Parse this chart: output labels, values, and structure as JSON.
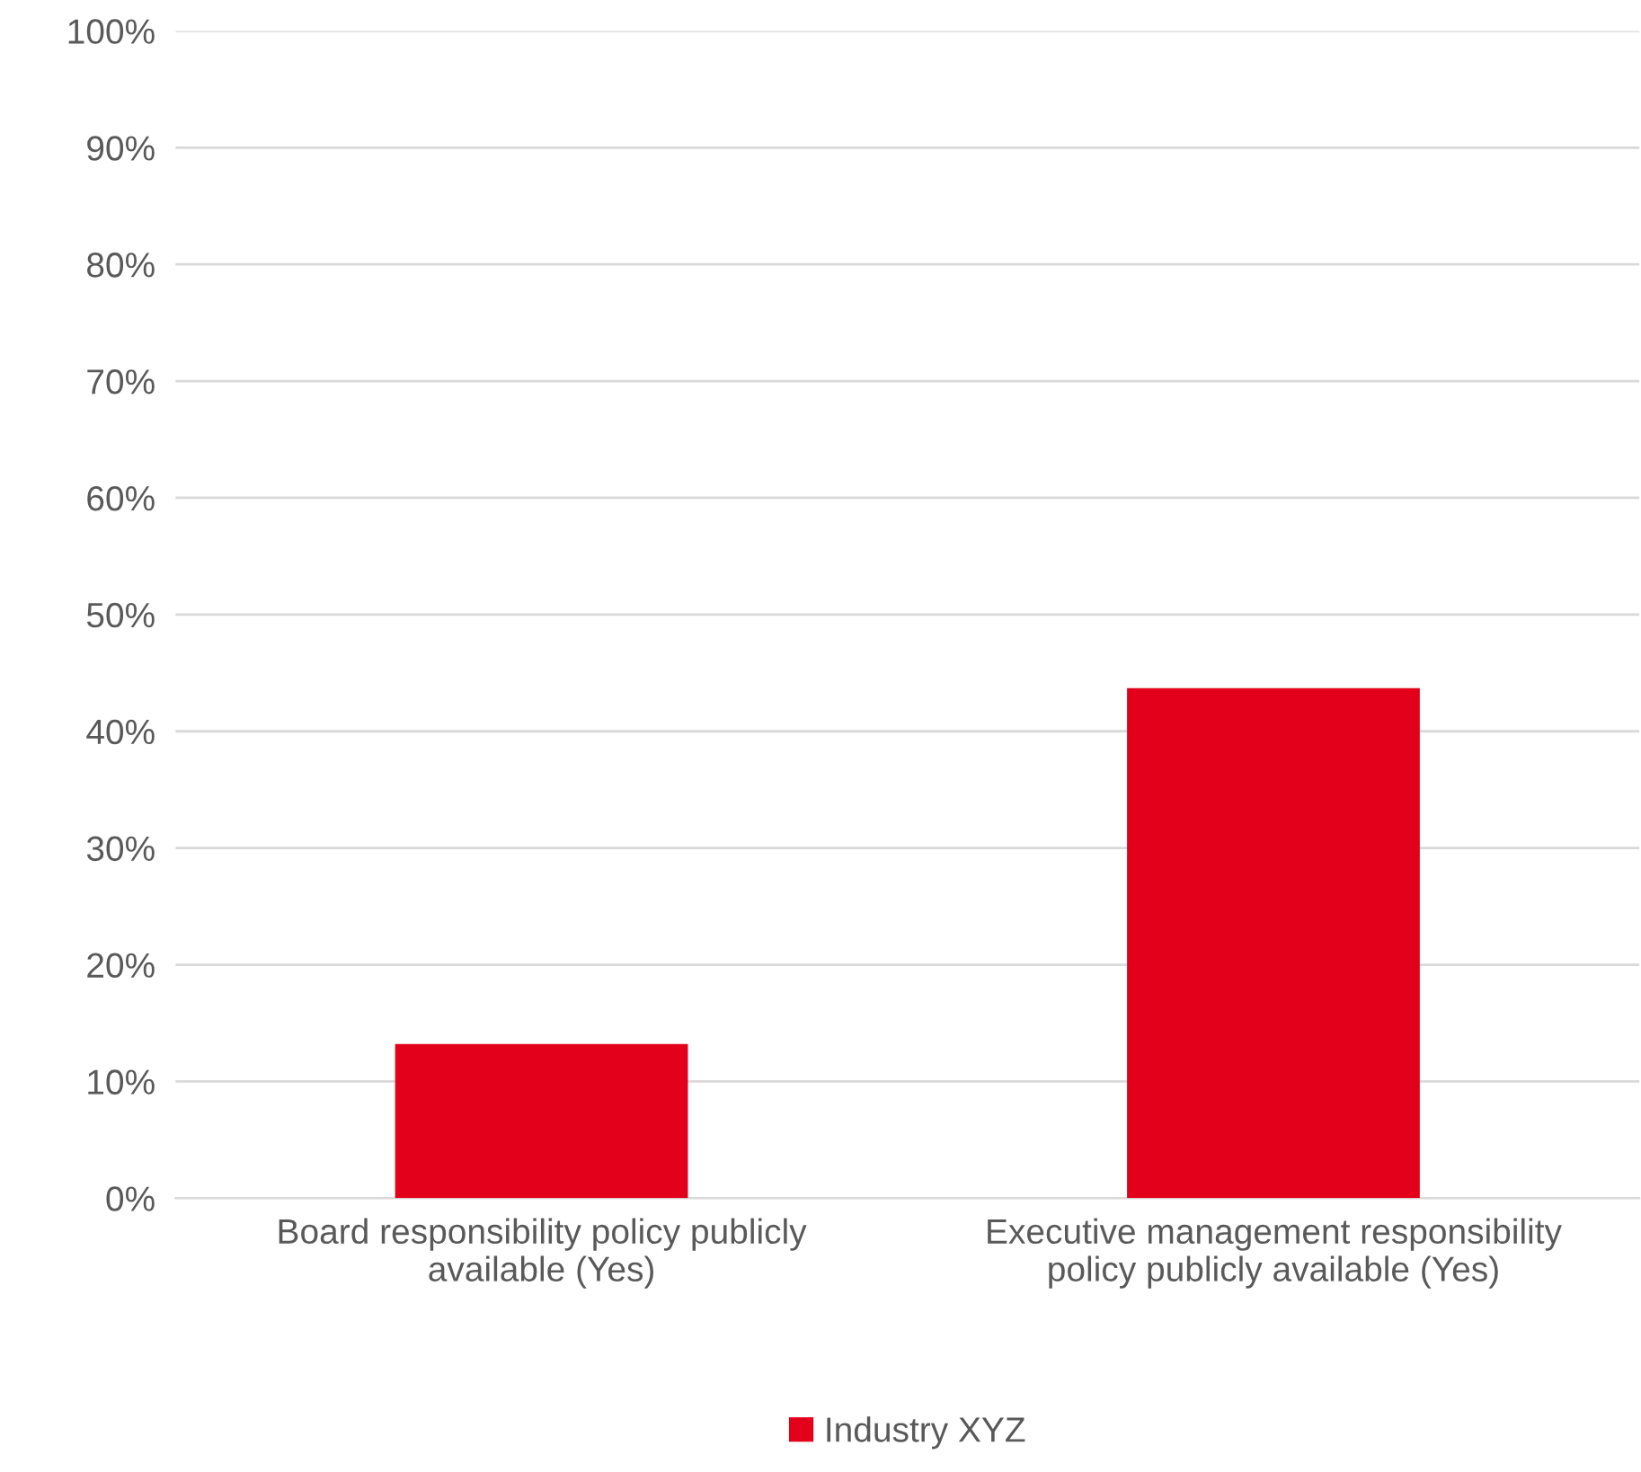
{
  "chart_data": {
    "type": "bar",
    "categories": [
      "Board responsibility policy publicly\navailable (Yes)",
      "Executive management responsibility\npolicy publicly available (Yes)"
    ],
    "series": [
      {
        "name": "Industry XYZ",
        "color": "#e2001a",
        "values": [
          13.2,
          43.7
        ]
      }
    ],
    "ylim": [
      0,
      100
    ],
    "yticks": [
      {
        "value": 0,
        "label": "0%"
      },
      {
        "value": 10,
        "label": "10%"
      },
      {
        "value": 20,
        "label": "20%"
      },
      {
        "value": 30,
        "label": "30%"
      },
      {
        "value": 40,
        "label": "40%"
      },
      {
        "value": 50,
        "label": "50%"
      },
      {
        "value": 60,
        "label": "60%"
      },
      {
        "value": 70,
        "label": "70%"
      },
      {
        "value": 80,
        "label": "80%"
      },
      {
        "value": 90,
        "label": "90%"
      },
      {
        "value": 100,
        "label": "100%"
      }
    ],
    "grid": "y",
    "legend": "bottom"
  }
}
